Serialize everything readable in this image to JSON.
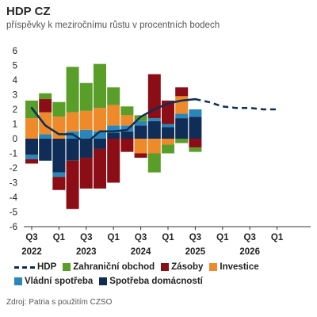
{
  "header": {
    "title": "HDP CZ",
    "subtitle": "příspěvky k meziročnímu růstu v procentních bodech"
  },
  "source": "Zdroj: Patria s použitím CZSO",
  "colors": {
    "Zahraniční obchod": "#5a9e2a",
    "Zásoby": "#8b0d16",
    "Investice": "#ee8a2a",
    "Vládní spotřeba": "#2a86b8",
    "Spotřeba domácností": "#0f2d57",
    "HDP": "#0f2d57"
  },
  "chart_data": {
    "type": "bar",
    "title": "HDP CZ",
    "subtitle": "příspěvky k meziročnímu růstu v procentních bodech",
    "ylim": [
      -6,
      6
    ],
    "yticks": [
      6,
      5,
      4,
      3,
      2,
      1,
      0,
      -1,
      -2,
      -3,
      -4,
      -5,
      -6
    ],
    "categories": [
      "Q3 2022",
      "Q4 2022",
      "Q1 2023",
      "Q2 2023",
      "Q3 2023",
      "Q4 2023",
      "Q1 2024",
      "Q2 2024",
      "Q3 2024",
      "Q4 2024",
      "Q1 2025",
      "Q2 2025",
      "Q3 2025"
    ],
    "x_ticks": [
      {
        "index": 0,
        "label": "Q3",
        "year": "2022"
      },
      {
        "index": 2,
        "label": "Q1",
        "year": ""
      },
      {
        "index": 4,
        "label": "Q3",
        "year": "2023"
      },
      {
        "index": 6,
        "label": "Q1",
        "year": ""
      },
      {
        "index": 8,
        "label": "Q3",
        "year": "2024"
      },
      {
        "index": 10,
        "label": "Q1",
        "year": ""
      },
      {
        "index": 12,
        "label": "Q3",
        "year": "2025"
      },
      {
        "index": 14,
        "label": "Q1",
        "year": ""
      },
      {
        "index": 16,
        "label": "Q3",
        "year": "2026"
      },
      {
        "index": 18,
        "label": "Q1",
        "year": ""
      }
    ],
    "legend": [
      "HDP",
      "Zahraniční obchod",
      "Zásoby",
      "Investice",
      "Vládní spotřeba",
      "Spotřeba domácností"
    ],
    "series": [
      {
        "name": "Spotřeba domácností",
        "values": [
          -1.1,
          -1.5,
          -2.3,
          -1.5,
          -1.3,
          -0.7,
          0.4,
          0.5,
          0.9,
          1.2,
          0.8,
          1.4,
          1.5
        ]
      },
      {
        "name": "Vládní spotřeba",
        "values": [
          -0.3,
          0.3,
          -0.3,
          0.5,
          0.6,
          0.5,
          0.5,
          0.4,
          0.3,
          0.2,
          0.2,
          0.3,
          0.5
        ]
      },
      {
        "name": "Investice",
        "values": [
          1.4,
          1.5,
          1.5,
          1.3,
          1.3,
          1.6,
          1.4,
          0.7,
          -1.0,
          -1.0,
          -0.4,
          1.2,
          0.0
        ]
      },
      {
        "name": "Zásoby",
        "values": [
          -0.3,
          0.9,
          -0.9,
          -3.3,
          -2.1,
          -2.7,
          -3.0,
          -0.9,
          -0.3,
          3.0,
          1.6,
          0.6,
          -0.6
        ]
      },
      {
        "name": "Zahraniční obchod",
        "values": [
          1.2,
          0.4,
          1.0,
          3.1,
          1.9,
          3.0,
          1.2,
          0.6,
          0.4,
          -1.3,
          -0.6,
          -0.3,
          -0.3
        ]
      },
      {
        "name": "HDP",
        "type": "line",
        "x": [
          0,
          1,
          2,
          3,
          4,
          5,
          6,
          7,
          8,
          9,
          10,
          11,
          12
        ],
        "values": [
          2.1,
          0.9,
          0.3,
          0.3,
          -0.3,
          0.5,
          0.5,
          0.6,
          1.5,
          2.0,
          2.4,
          2.6,
          2.7
        ]
      },
      {
        "name": "HDP",
        "type": "line",
        "style": "dashed",
        "x": [
          12,
          13,
          14,
          15,
          16,
          17,
          18
        ],
        "values": [
          2.7,
          2.5,
          2.2,
          2.1,
          2.1,
          2.0,
          2.0
        ]
      }
    ]
  }
}
